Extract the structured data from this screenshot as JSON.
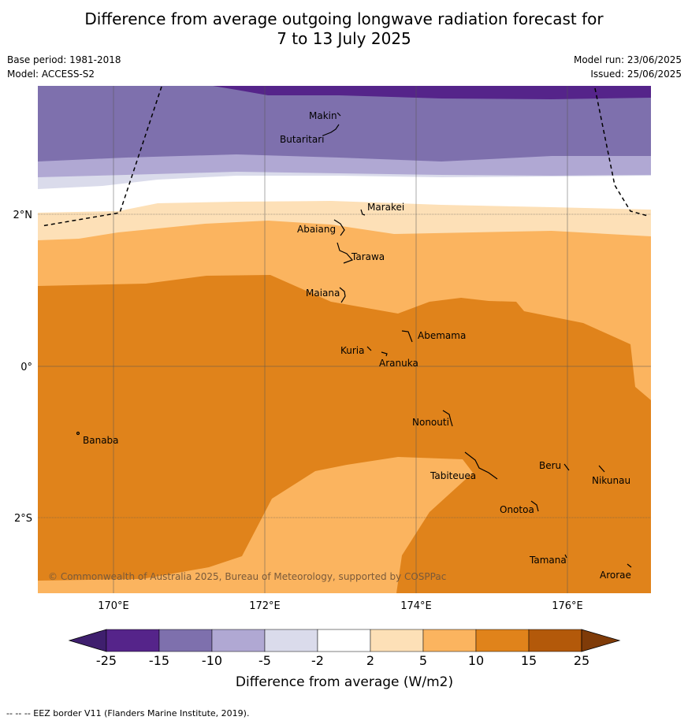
{
  "title_line1": "Difference from average outgoing longwave radiation forecast for",
  "title_line2": "7 to 13 July 2025",
  "base_period": "Base period: 1981-2018",
  "model": "Model: ACCESS-S2",
  "model_run": "Model run: 23/06/2025",
  "issued": "Issued: 25/06/2025",
  "lat_labels": [
    "2°N",
    "0°",
    "2°S"
  ],
  "lon_labels": [
    "170°E",
    "172°E",
    "174°E",
    "176°E"
  ],
  "places": [
    "Makin",
    "Butaritari",
    "Marakei",
    "Abaiang",
    "Tarawa",
    "Maiana",
    "Abemama",
    "Kuria",
    "Aranuka",
    "Nonouti",
    "Banaba",
    "Beru",
    "Nikunau",
    "Tabiteuea",
    "Onotoa",
    "Tamana",
    "Arorae"
  ],
  "copyright": "© Commonwealth of Australia 2025, Bureau of Meteorology, supported by COSPPac",
  "colorbar": {
    "ticks": [
      "-25",
      "-15",
      "-10",
      "-5",
      "-2",
      "2",
      "5",
      "10",
      "15",
      "25"
    ],
    "colors": [
      "#3f1f6e",
      "#55248a",
      "#7e70ad",
      "#b0a8d3",
      "#dadbeb",
      "#ffffff",
      "#fde0b7",
      "#fbb45f",
      "#e0831b",
      "#b3590a",
      "#7f3b08"
    ],
    "label": "Difference from average (W/m2)"
  },
  "eez_note": "--  --  -- EEZ border V11 (Flanders Marine Institute, 2019)."
}
